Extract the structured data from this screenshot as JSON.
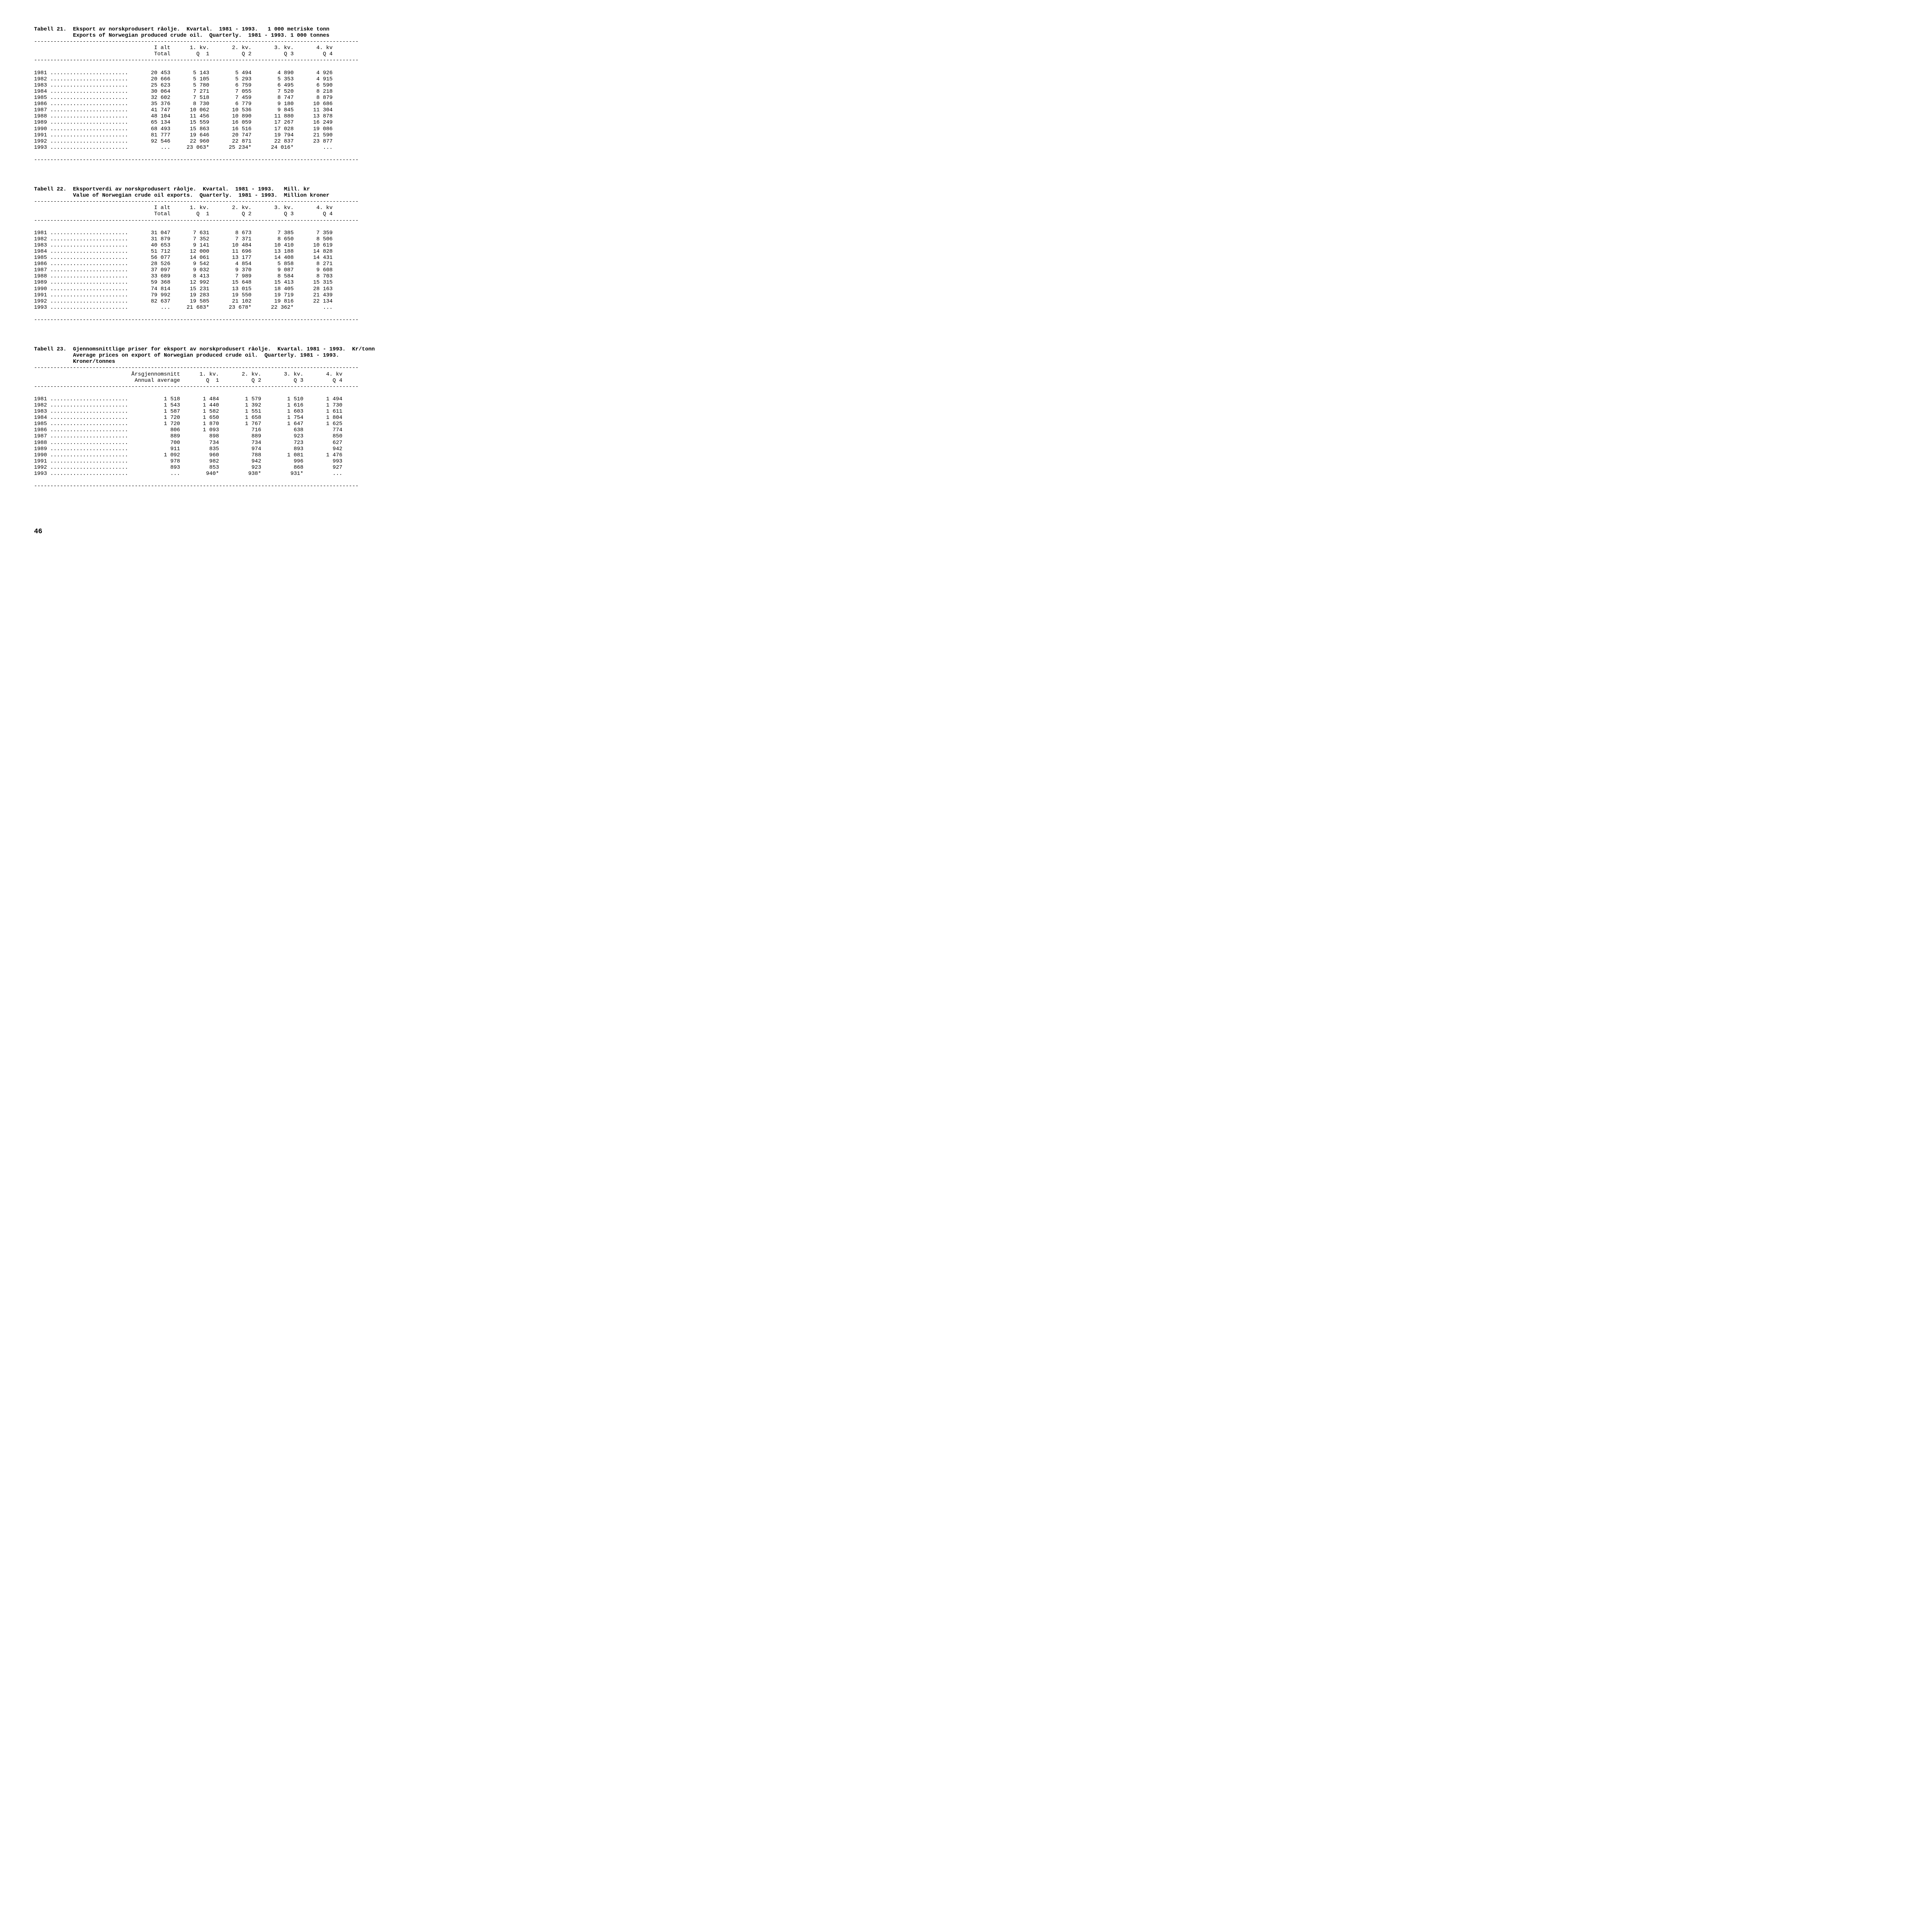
{
  "tables": [
    {
      "number": "Tabell 21.",
      "title_no": "Eksport av norskprodusert råolje.  Kvartal.  1981 - 1993.   1 000 metriske tonn",
      "title_en": "Exports of Norwegian produced crude oil.  Quarterly.  1981 - 1993. 1 000 tonnes",
      "col_header_1": "I alt\nTotal",
      "col_header_2": "1. kv.\nQ  1",
      "col_header_3": "2. kv.\nQ 2",
      "col_header_4": "3. kv.\nQ 3",
      "col_header_5": "4. kv\nQ 4",
      "rows": [
        {
          "year": "1981",
          "c1": "20 453",
          "c2": "5 143",
          "c3": "5 494",
          "c4": "4 890",
          "c5": "4 926"
        },
        {
          "year": "1982",
          "c1": "20 666",
          "c2": "5 105",
          "c3": "5 293",
          "c4": "5 353",
          "c5": "4 915"
        },
        {
          "year": "1983",
          "c1": "25 623",
          "c2": "5 780",
          "c3": "6 759",
          "c4": "6 495",
          "c5": "6 590"
        },
        {
          "year": "1984",
          "c1": "30 064",
          "c2": "7 271",
          "c3": "7 055",
          "c4": "7 520",
          "c5": "8 218"
        },
        {
          "year": "1985",
          "c1": "32 602",
          "c2": "7 518",
          "c3": "7 459",
          "c4": "8 747",
          "c5": "8 879"
        },
        {
          "year": "1986",
          "c1": "35 376",
          "c2": "8 730",
          "c3": "6 779",
          "c4": "9 180",
          "c5": "10 686"
        },
        {
          "year": "1987",
          "c1": "41 747",
          "c2": "10 062",
          "c3": "10 536",
          "c4": "9 845",
          "c5": "11 304"
        },
        {
          "year": "1988",
          "c1": "48 104",
          "c2": "11 456",
          "c3": "10 890",
          "c4": "11 880",
          "c5": "13 878"
        },
        {
          "year": "1989",
          "c1": "65 134",
          "c2": "15 559",
          "c3": "16 059",
          "c4": "17 267",
          "c5": "16 249"
        },
        {
          "year": "1990",
          "c1": "68 493",
          "c2": "15 863",
          "c3": "16 516",
          "c4": "17 028",
          "c5": "19 086"
        },
        {
          "year": "1991",
          "c1": "81 777",
          "c2": "19 646",
          "c3": "20 747",
          "c4": "19 794",
          "c5": "21 590"
        },
        {
          "year": "1992",
          "c1": "92 546",
          "c2": "22 960",
          "c3": "22 871",
          "c4": "22 837",
          "c5": "23 877"
        },
        {
          "year": "1993",
          "c1": "...",
          "c2": "23 063*",
          "c3": "25 234*",
          "c4": "24 016*",
          "c5": "..."
        }
      ]
    },
    {
      "number": "Tabell 22.",
      "title_no": "Eksportverdi av norskprodusert råolje.  Kvartal.  1981 - 1993.   Mill. kr",
      "title_en": "Value of Norwegian crude oil exports.  Quarterly.  1981 - 1993.  Million kroner",
      "col_header_1": "I alt\nTotal",
      "col_header_2": "1. kv.\nQ  1",
      "col_header_3": "2. kv.\nQ 2",
      "col_header_4": "3. kv.\nQ 3",
      "col_header_5": "4. kv\nQ 4",
      "rows": [
        {
          "year": "1981",
          "c1": "31 047",
          "c2": "7 631",
          "c3": "8 673",
          "c4": "7 385",
          "c5": "7 359"
        },
        {
          "year": "1982",
          "c1": "31 879",
          "c2": "7 352",
          "c3": "7 371",
          "c4": "8 650",
          "c5": "8 506"
        },
        {
          "year": "1983",
          "c1": "40 653",
          "c2": "9 141",
          "c3": "10 484",
          "c4": "10 410",
          "c5": "10 619"
        },
        {
          "year": "1984",
          "c1": "51 712",
          "c2": "12 000",
          "c3": "11 696",
          "c4": "13 188",
          "c5": "14 828"
        },
        {
          "year": "1985",
          "c1": "56 077",
          "c2": "14 061",
          "c3": "13 177",
          "c4": "14 408",
          "c5": "14 431"
        },
        {
          "year": "1986",
          "c1": "28 526",
          "c2": "9 542",
          "c3": "4 854",
          "c4": "5 858",
          "c5": "8 271"
        },
        {
          "year": "1987",
          "c1": "37 097",
          "c2": "9 032",
          "c3": "9 370",
          "c4": "9 087",
          "c5": "9 608"
        },
        {
          "year": "1988",
          "c1": "33 689",
          "c2": "8 413",
          "c3": "7 989",
          "c4": "8 584",
          "c5": "8 703"
        },
        {
          "year": "1989",
          "c1": "59 368",
          "c2": "12 992",
          "c3": "15 648",
          "c4": "15 413",
          "c5": "15 315"
        },
        {
          "year": "1990",
          "c1": "74 814",
          "c2": "15 231",
          "c3": "13 015",
          "c4": "18 405",
          "c5": "28 163"
        },
        {
          "year": "1991",
          "c1": "79 992",
          "c2": "19 283",
          "c3": "19 550",
          "c4": "19 719",
          "c5": "21 439"
        },
        {
          "year": "1992",
          "c1": "82 637",
          "c2": "19 585",
          "c3": "21 102",
          "c4": "19 816",
          "c5": "22 134"
        },
        {
          "year": "1993",
          "c1": "...",
          "c2": "21 683*",
          "c3": "23 678*",
          "c4": "22 362*",
          "c5": "..."
        }
      ]
    },
    {
      "number": "Tabell 23.",
      "title_no": "Gjennomsnittlige priser for eksport av norskprodusert råolje.  Kvartal. 1981 - 1993.  Kr/tonn",
      "title_en": "Average prices on export of Norwegian produced crude oil.  Quarterly. 1981 - 1993.",
      "title_extra": "Kroner/tonnes",
      "col_header_1": "Årsgjennomsnitt\nAnnual average",
      "col_header_2": "1. kv.\nQ  1",
      "col_header_3": "2. kv.\nQ 2",
      "col_header_4": "3. kv.\nQ 3",
      "col_header_5": "4. kv\nQ 4",
      "rows": [
        {
          "year": "1981",
          "c1": "1 518",
          "c2": "1 484",
          "c3": "1 579",
          "c4": "1 510",
          "c5": "1 494"
        },
        {
          "year": "1982",
          "c1": "1 543",
          "c2": "1 440",
          "c3": "1 392",
          "c4": "1 616",
          "c5": "1 730"
        },
        {
          "year": "1983",
          "c1": "1 587",
          "c2": "1 582",
          "c3": "1 551",
          "c4": "1 603",
          "c5": "1 611"
        },
        {
          "year": "1984",
          "c1": "1 720",
          "c2": "1 650",
          "c3": "1 658",
          "c4": "1 754",
          "c5": "1 804"
        },
        {
          "year": "1985",
          "c1": "1 720",
          "c2": "1 870",
          "c3": "1 767",
          "c4": "1 647",
          "c5": "1 625"
        },
        {
          "year": "1986",
          "c1": "806",
          "c2": "1 093",
          "c3": "716",
          "c4": "638",
          "c5": "774"
        },
        {
          "year": "1987",
          "c1": "889",
          "c2": "898",
          "c3": "889",
          "c4": "923",
          "c5": "850"
        },
        {
          "year": "1988",
          "c1": "700",
          "c2": "734",
          "c3": "734",
          "c4": "723",
          "c5": "627"
        },
        {
          "year": "1989",
          "c1": "911",
          "c2": "835",
          "c3": "974",
          "c4": "893",
          "c5": "942"
        },
        {
          "year": "1990",
          "c1": "1 092",
          "c2": "960",
          "c3": "788",
          "c4": "1 081",
          "c5": "1 476"
        },
        {
          "year": "1991",
          "c1": "978",
          "c2": "982",
          "c3": "942",
          "c4": "996",
          "c5": "993"
        },
        {
          "year": "1992",
          "c1": "893",
          "c2": "853",
          "c3": "923",
          "c4": "868",
          "c5": "927"
        },
        {
          "year": "1993",
          "c1": "...",
          "c2": "940*",
          "c3": "938*",
          "c4": "931*",
          "c5": "..."
        }
      ]
    }
  ],
  "page_number": "46",
  "dots": " ........................",
  "dash_line": "----------------------------------------------------------------------------------------------------"
}
